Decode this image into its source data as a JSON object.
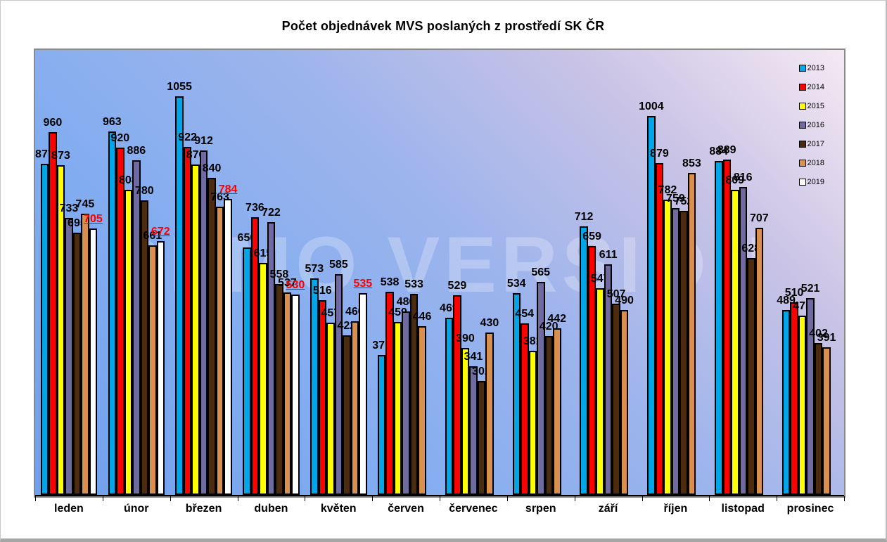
{
  "title": "Počet objednávek MVS poslaných z prostředí SK ČR",
  "watermark": "DEMO VERSION",
  "chart_data": {
    "type": "bar",
    "title": "Počet objednávek MVS poslaných z prostředí SK ČR",
    "xlabel": "",
    "ylabel": "",
    "ylim": [
      0,
      1190
    ],
    "grid": false,
    "legend_position": "top-right",
    "watermark": "DEMO VERSION",
    "categories": [
      "leden",
      "únor",
      "březen",
      "duben",
      "květen",
      "červen",
      "červenec",
      "srpen",
      "září",
      "říjen",
      "listopad",
      "prosinec"
    ],
    "series": [
      {
        "name": "2013",
        "color": "#00a6e8",
        "values": [
          877,
          963,
          1055,
          656,
          573,
          371,
          469,
          534,
          712,
          1004,
          884,
          489
        ]
      },
      {
        "name": "2014",
        "color": "#fe0000",
        "values": [
          960,
          920,
          922,
          736,
          516,
          538,
          529,
          454,
          659,
          879,
          889,
          510
        ]
      },
      {
        "name": "2015",
        "color": "#ffff00",
        "values": [
          873,
          808,
          876,
          615,
          457,
          459,
          390,
          381,
          547,
          782,
          809,
          475
        ]
      },
      {
        "name": "2016",
        "color": "#6f6a9f",
        "values": [
          733,
          886,
          912,
          722,
          585,
          486,
          341,
          565,
          611,
          759,
          816,
          521
        ]
      },
      {
        "name": "2017",
        "color": "#4c2b0e",
        "values": [
          695,
          780,
          840,
          558,
          422,
          533,
          302,
          420,
          507,
          752,
          628,
          402
        ]
      },
      {
        "name": "2018",
        "color": "#d98f4e",
        "values": [
          745,
          661,
          763,
          537,
          460,
          446,
          430,
          442,
          490,
          853,
          707,
          391
        ]
      },
      {
        "name": "2019",
        "color": "#ffffff",
        "highlight": true,
        "label_color": "#ff0000",
        "values": [
          705,
          672,
          784,
          530,
          535,
          null,
          null,
          null,
          null,
          null,
          null,
          null
        ]
      }
    ]
  }
}
